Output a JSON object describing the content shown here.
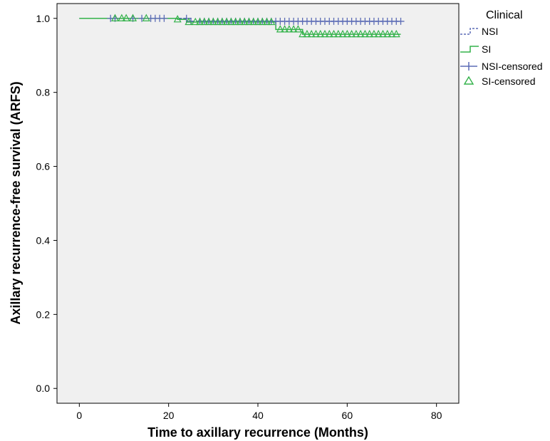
{
  "chart_data": {
    "type": "line",
    "subtype": "kaplan-meier",
    "title": "",
    "xlabel": "Time to axillary recurrence (Months)",
    "ylabel": "Axillary recurrence-free survival (ARFS)",
    "xlim": [
      -5,
      85
    ],
    "ylim": [
      -0.04,
      1.04
    ],
    "xticks": [
      0,
      20,
      40,
      60,
      80
    ],
    "yticks": [
      0.0,
      0.2,
      0.4,
      0.6,
      0.8,
      1.0
    ],
    "ytick_labels": [
      "0.0",
      "0.2",
      "0.4",
      "0.6",
      "0.8",
      "1.0"
    ],
    "grid": false,
    "background": "#f0f0f0",
    "legend": {
      "title": "Clinical",
      "position": "outside-right",
      "entries": [
        "NSI",
        "SI",
        "NSI-censored",
        "SI-censored"
      ]
    },
    "series": [
      {
        "name": "NSI",
        "color": "#5b6bb5",
        "style": "dashed",
        "steps": [
          [
            0,
            1.0
          ],
          [
            25,
            1.0
          ],
          [
            25,
            0.992
          ],
          [
            72,
            0.992
          ]
        ],
        "censored": [
          7,
          8,
          12,
          14,
          16,
          17,
          18,
          19,
          24,
          25,
          27,
          28,
          29,
          30,
          31,
          32,
          33,
          34,
          35,
          36,
          37,
          38,
          39,
          40,
          41,
          42,
          43,
          44,
          45,
          46,
          47,
          48,
          49,
          50,
          51,
          52,
          53,
          54,
          55,
          56,
          57,
          58,
          59,
          60,
          61,
          62,
          63,
          64,
          65,
          66,
          67,
          68,
          69,
          70,
          71,
          72
        ]
      },
      {
        "name": "SI",
        "color": "#33b24a",
        "style": "solid",
        "steps": [
          [
            0,
            1.0
          ],
          [
            22,
            1.0
          ],
          [
            22,
            0.997
          ],
          [
            24,
            0.997
          ],
          [
            24,
            0.99
          ],
          [
            44,
            0.99
          ],
          [
            44,
            0.97
          ],
          [
            50,
            0.97
          ],
          [
            50,
            0.957
          ],
          [
            72,
            0.957
          ]
        ],
        "censored": [
          8,
          9.5,
          10.5,
          12,
          15,
          22,
          24.5,
          26,
          27,
          28,
          29,
          30,
          31,
          32,
          33,
          34,
          35,
          36,
          37,
          38,
          39,
          40,
          41,
          42,
          43,
          45,
          46,
          47,
          48,
          49,
          50,
          51,
          52,
          53,
          54,
          55,
          56,
          57,
          58,
          59,
          60,
          61,
          62,
          63,
          64,
          65,
          66,
          67,
          68,
          69,
          70,
          71
        ]
      }
    ]
  }
}
